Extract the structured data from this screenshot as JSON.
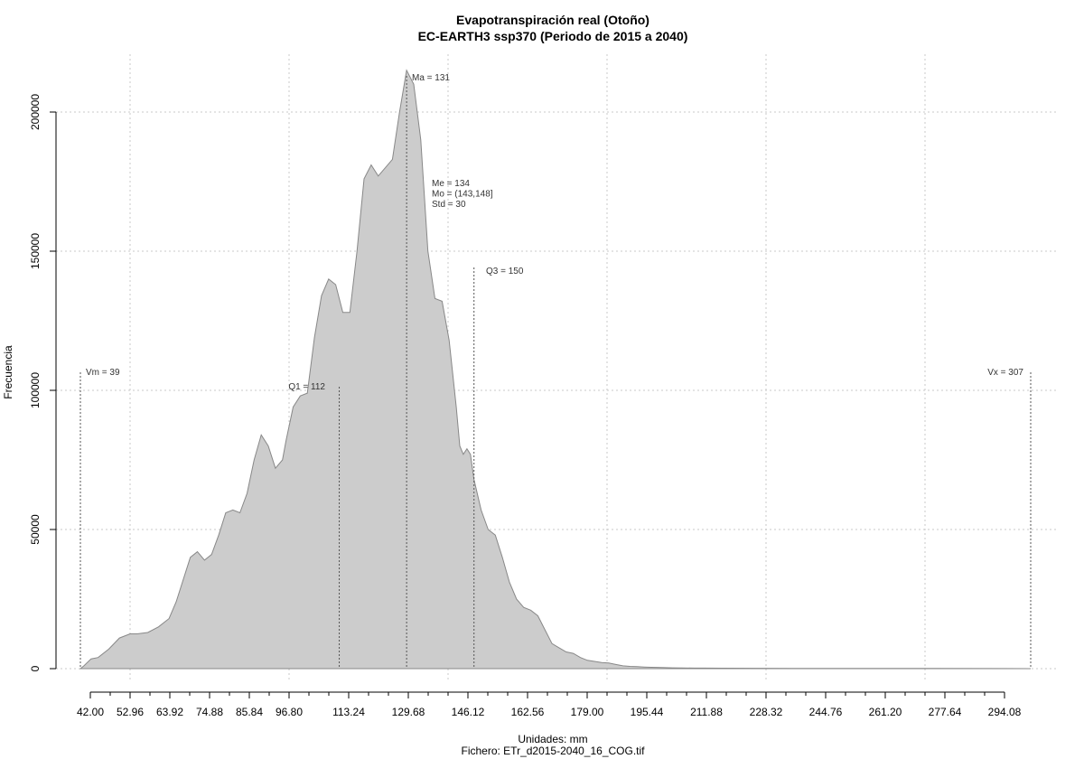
{
  "chart_data": {
    "type": "area",
    "title": "Evapotranspiración real (Otoño)",
    "subtitle": "EC-EARTH3 ssp370 (Periodo de 2015 a 2040)",
    "xlabel": "Unidades: mm",
    "ylabel": "Frecuencia",
    "caption": "Fichero: ETr_d2015-2040_16_COG.tif",
    "xlim": [
      39,
      307
    ],
    "ylim": [
      0,
      215000
    ],
    "x_ticks": [
      "42.00",
      "52.96",
      "63.92",
      "74.88",
      "85.84",
      "96.80",
      "113.24",
      "129.68",
      "146.12",
      "162.56",
      "179.00",
      "195.44",
      "211.88",
      "228.32",
      "244.76",
      "261.20",
      "277.64",
      "294.08"
    ],
    "y_ticks": [
      "0",
      "50000",
      "100000",
      "150000",
      "200000"
    ],
    "grid": true,
    "fill_color": "#cccccc",
    "stroke_color": "#888888",
    "x": [
      39,
      40,
      42,
      44,
      47,
      50,
      53,
      55,
      58,
      61,
      64,
      66,
      70,
      72,
      74,
      76,
      78,
      80,
      82,
      84,
      86,
      88,
      90,
      92,
      94,
      96,
      97,
      99,
      101,
      103,
      105,
      107,
      109,
      111,
      113,
      115,
      117,
      119,
      121,
      123,
      125,
      127,
      129,
      131,
      133,
      135,
      137,
      139,
      141,
      143,
      145,
      146,
      147,
      148,
      149,
      150,
      152,
      154,
      156,
      158,
      160,
      162,
      164,
      166,
      168,
      170,
      172,
      174,
      176,
      178,
      180,
      182,
      184,
      186,
      188,
      190,
      192,
      194,
      196,
      198,
      200,
      203,
      206,
      209,
      212,
      215,
      220,
      230,
      240,
      260,
      280,
      300,
      307
    ],
    "y": [
      0,
      1000,
      3500,
      4000,
      7000,
      11000,
      12500,
      12500,
      13000,
      15000,
      18000,
      24000,
      40000,
      42000,
      39000,
      41000,
      48000,
      56000,
      57000,
      56000,
      63000,
      75000,
      84000,
      80000,
      72000,
      75000,
      82000,
      94000,
      98000,
      99000,
      119000,
      134000,
      140000,
      138000,
      128000,
      128000,
      150000,
      176000,
      181000,
      177000,
      180000,
      183000,
      200000,
      215000,
      210000,
      190000,
      150000,
      133000,
      132000,
      118000,
      94000,
      80000,
      77000,
      79000,
      77000,
      68000,
      57000,
      50000,
      48000,
      40000,
      31000,
      25000,
      22000,
      21000,
      19000,
      14000,
      9000,
      7500,
      6000,
      5500,
      4000,
      3000,
      2600,
      2200,
      2000,
      1500,
      1000,
      800,
      700,
      600,
      500,
      400,
      300,
      250,
      200,
      180,
      150,
      120,
      100,
      80,
      60,
      40,
      0
    ],
    "annotations": {
      "vm": {
        "label": "Vm = 39",
        "x": 39
      },
      "q1": {
        "label": "Q1 = 112",
        "x": 112
      },
      "ma": {
        "label": "Ma = 131",
        "x": 131
      },
      "q3": {
        "label": "Q3 = 150",
        "x": 150
      },
      "vx": {
        "label": "Vx = 307",
        "x": 307
      },
      "stats": [
        "Me = 134",
        "Mo = (143,148]",
        "Std = 30"
      ]
    }
  }
}
